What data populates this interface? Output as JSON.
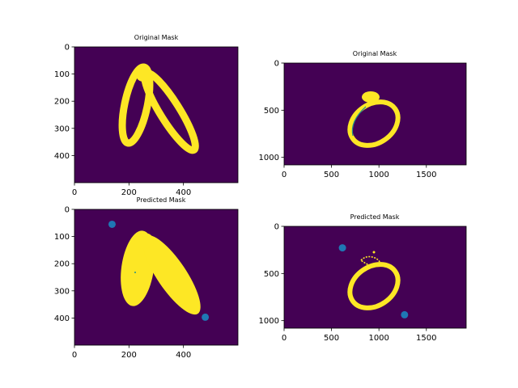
{
  "chart_data": [
    {
      "type": "image",
      "title": "Original Mask",
      "image_shape": [
        500,
        600
      ],
      "xlim": [
        0,
        600
      ],
      "ylim": [
        500,
        0
      ],
      "xticks": [
        0,
        200,
        400
      ],
      "yticks": [
        0,
        100,
        200,
        300,
        400
      ],
      "background_color": "#440154",
      "foreground_color": "#fde725",
      "points": []
    },
    {
      "type": "image",
      "title": "Original Mask",
      "image_shape": [
        1080,
        1920
      ],
      "xlim": [
        0,
        1920
      ],
      "ylim": [
        1080,
        0
      ],
      "xticks": [
        0,
        500,
        1000,
        1500
      ],
      "yticks": [
        0,
        500,
        1000
      ],
      "background_color": "#440154",
      "foreground_color": "#fde725",
      "points": []
    },
    {
      "type": "image",
      "title": "Predicted Mask",
      "image_shape": [
        500,
        600
      ],
      "xlim": [
        0,
        600
      ],
      "ylim": [
        500,
        0
      ],
      "xticks": [
        0,
        200,
        400
      ],
      "yticks": [
        0,
        100,
        200,
        300,
        400
      ],
      "background_color": "#440154",
      "foreground_color": "#fde725",
      "points": [
        {
          "x": 138,
          "y": 55
        },
        {
          "x": 480,
          "y": 397
        }
      ],
      "point_color": "#1f77b4"
    },
    {
      "type": "image",
      "title": "Predicted Mask",
      "image_shape": [
        1080,
        1920
      ],
      "xlim": [
        0,
        1920
      ],
      "ylim": [
        1080,
        0
      ],
      "xticks": [
        0,
        500,
        1000,
        1500
      ],
      "yticks": [
        0,
        500,
        1000
      ],
      "background_color": "#440154",
      "foreground_color": "#fde725",
      "points": [
        {
          "x": 615,
          "y": 228
        },
        {
          "x": 1270,
          "y": 938
        }
      ],
      "point_color": "#1f77b4"
    }
  ]
}
